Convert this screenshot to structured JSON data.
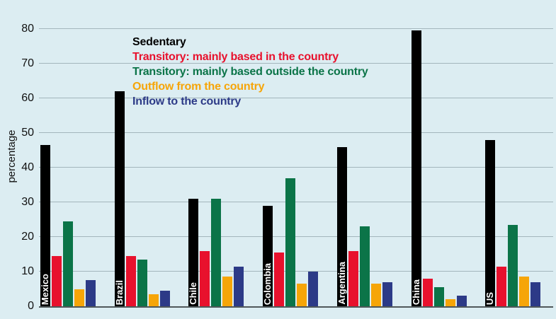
{
  "chart_data": {
    "type": "bar",
    "title": "",
    "ylabel": "percentage",
    "xlabel": "",
    "ylim": [
      0,
      80
    ],
    "yticks": [
      0,
      10,
      20,
      30,
      40,
      50,
      60,
      70,
      80
    ],
    "grid": true,
    "legend_position": "inside-top-left",
    "categories": [
      "Mexico",
      "Brazil",
      "Chile",
      "Colombia",
      "Argentina",
      "China",
      "US"
    ],
    "series": [
      {
        "key": "sedentary",
        "name": "Sedentary",
        "color": "#000000",
        "values": [
          46.5,
          62,
          31,
          29,
          46,
          79.5,
          48
        ]
      },
      {
        "key": "transitory-in",
        "name": "Transitory: mainly based in the country",
        "color": "#e8112d",
        "values": [
          14.5,
          14.5,
          16,
          15.5,
          16,
          8,
          11.5
        ]
      },
      {
        "key": "transitory-out",
        "name": "Transitory: mainly based outside the country",
        "color": "#0b7448",
        "values": [
          24.5,
          13.5,
          31,
          37,
          23,
          5.5,
          23.5
        ]
      },
      {
        "key": "outflow",
        "name": "Outflow from the country",
        "color": "#f6a508",
        "values": [
          5,
          3.5,
          8.5,
          6.5,
          6.5,
          2,
          8.5
        ]
      },
      {
        "key": "inflow",
        "name": "Inflow to the country",
        "color": "#2c3a87",
        "values": [
          7.5,
          4.5,
          11.5,
          10,
          7,
          3,
          7
        ]
      }
    ],
    "colors": {
      "background": "#dcedf2",
      "gridline": "#a3b6bc",
      "axis_line": "#50585a",
      "tick_label": "#111111",
      "category_label": "#ffffff"
    }
  }
}
